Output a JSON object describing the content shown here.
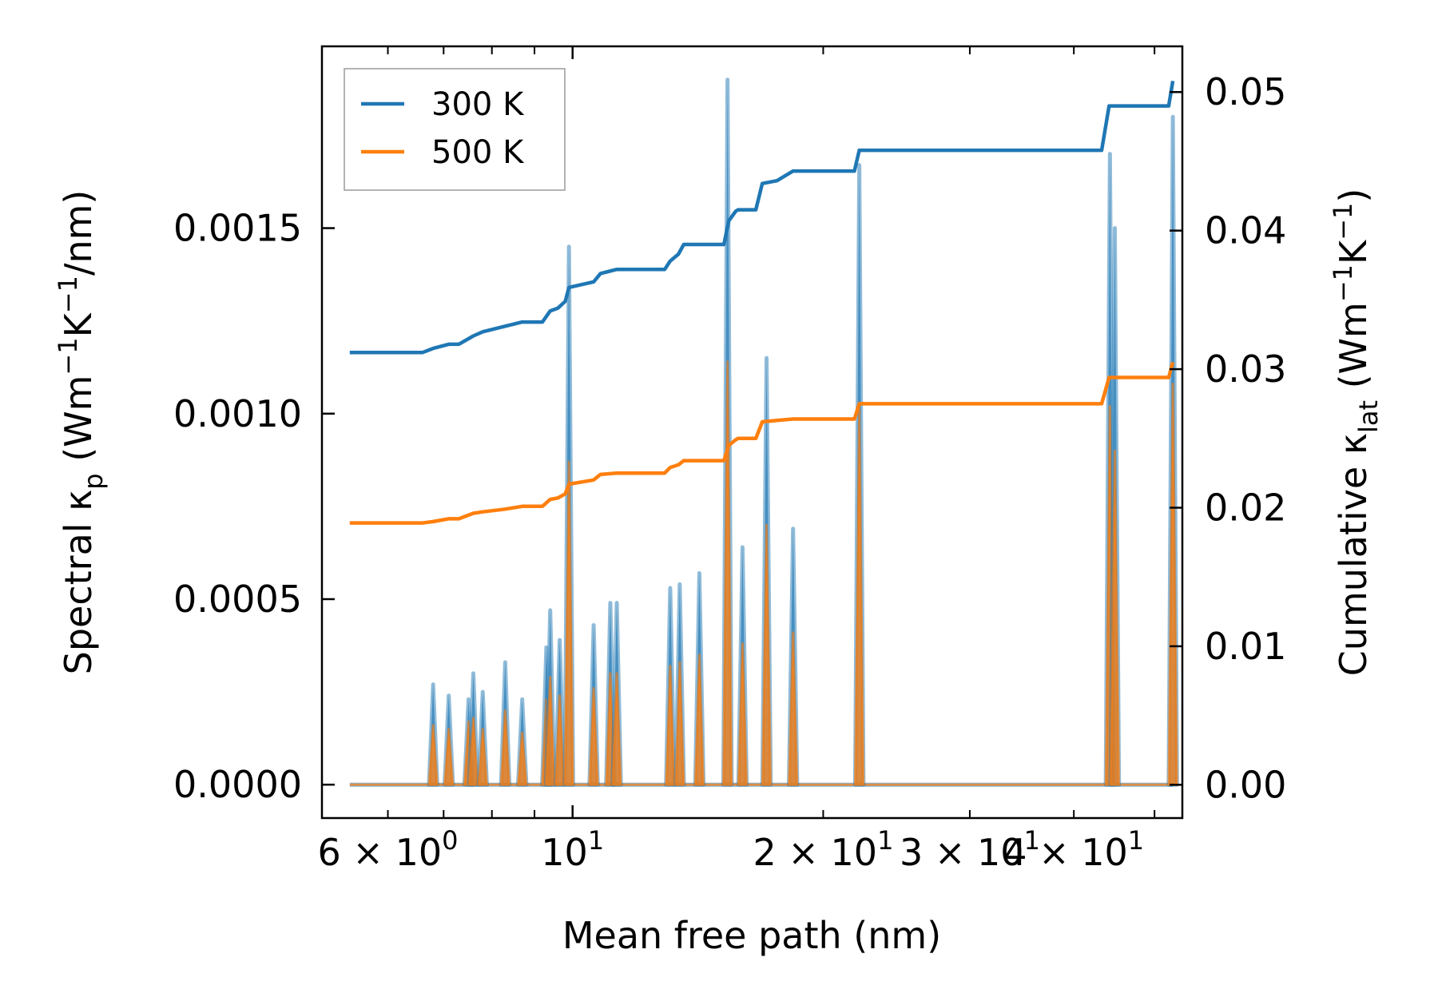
{
  "chart_data": {
    "type": "line",
    "title": "",
    "xlabel": "Mean free path (nm)",
    "ylabel_left": {
      "prefix": "Spectral κ",
      "sub": "p",
      "units_prefix": " (Wm",
      "sup1": "−1",
      "mid": "K",
      "sup2": "−1",
      "suffix": "/nm)"
    },
    "ylabel_right": {
      "prefix": "Cumulative κ",
      "sub": "lat",
      "units_prefix": " (Wm",
      "sup1": "−1",
      "mid": "K",
      "sup2": "−1",
      "suffix": ")"
    },
    "xscale": "log",
    "xlim": [
      5.0,
      54.0
    ],
    "ylim_left": [
      -9e-05,
      0.00199
    ],
    "ylim_right": [
      -0.0024,
      0.0533
    ],
    "x_ticks": [
      {
        "value": 6,
        "mant": "6",
        "times": " × ",
        "base": "10",
        "exp": "0"
      },
      {
        "value": 10,
        "mant": "",
        "times": "",
        "base": "10",
        "exp": "1"
      },
      {
        "value": 20,
        "mant": "2",
        "times": " × ",
        "base": "10",
        "exp": "1"
      },
      {
        "value": 30,
        "mant": "3",
        "times": " × ",
        "base": "10",
        "exp": "1"
      },
      {
        "value": 40,
        "mant": "4",
        "times": " × ",
        "base": "10",
        "exp": "1"
      }
    ],
    "y_left_ticks": [
      "0.0000",
      "0.0005",
      "0.0010",
      "0.0015"
    ],
    "y_left_tick_values": [
      0.0,
      0.0005,
      0.001,
      0.0015
    ],
    "y_right_ticks": [
      "0.00",
      "0.01",
      "0.02",
      "0.03",
      "0.04",
      "0.05"
    ],
    "y_right_tick_values": [
      0.0,
      0.01,
      0.02,
      0.03,
      0.04,
      0.05
    ],
    "legend": {
      "placement": "top-left",
      "entries": [
        "300 K",
        "500 K"
      ]
    },
    "colors": {
      "300 K": "#1f77b4",
      "500 K": "#ff7f0e"
    },
    "spectral_peaks": [
      {
        "x": 6.8,
        "k300": 0.00027,
        "k500": 0.00016
      },
      {
        "x": 7.1,
        "k300": 0.00024,
        "k500": 0.00015
      },
      {
        "x": 7.5,
        "k300": 0.00023,
        "k500": 0.00017
      },
      {
        "x": 7.6,
        "k300": 0.0003,
        "k500": 0.00018
      },
      {
        "x": 7.8,
        "k300": 0.00025,
        "k500": 0.00015
      },
      {
        "x": 8.3,
        "k300": 0.00033,
        "k500": 0.0002
      },
      {
        "x": 8.7,
        "k300": 0.00023,
        "k500": 0.00014
      },
      {
        "x": 9.3,
        "k300": 0.00037,
        "k500": 0.00023
      },
      {
        "x": 9.4,
        "k300": 0.00047,
        "k500": 0.00029
      },
      {
        "x": 9.65,
        "k300": 0.00039,
        "k500": 0.00024
      },
      {
        "x": 9.9,
        "k300": 0.00145,
        "k500": 0.00087
      },
      {
        "x": 10.6,
        "k300": 0.00043,
        "k500": 0.00026
      },
      {
        "x": 11.1,
        "k300": 0.00049,
        "k500": 0.0003
      },
      {
        "x": 11.3,
        "k300": 0.00049,
        "k500": 0.0003
      },
      {
        "x": 13.1,
        "k300": 0.00053,
        "k500": 0.00032
      },
      {
        "x": 13.45,
        "k300": 0.00054,
        "k500": 0.00033
      },
      {
        "x": 14.2,
        "k300": 0.00057,
        "k500": 0.00035
      },
      {
        "x": 15.35,
        "k300": 0.0019,
        "k500": 0.00114
      },
      {
        "x": 16.0,
        "k300": 0.00064,
        "k500": 0.00038
      },
      {
        "x": 17.1,
        "k300": 0.00115,
        "k500": 0.0007
      },
      {
        "x": 18.4,
        "k300": 0.00069,
        "k500": 0.00041
      },
      {
        "x": 22.1,
        "k300": 0.00167,
        "k500": 0.00101
      },
      {
        "x": 44.2,
        "k300": 0.0017,
        "k500": 0.00102
      },
      {
        "x": 44.8,
        "k300": 0.0015,
        "k500": 0.0009
      },
      {
        "x": 52.6,
        "k300": 0.0018,
        "k500": 0.00108
      }
    ],
    "series": [
      {
        "name": "300 K",
        "x": [
          5.4,
          6.6,
          6.8,
          7.1,
          7.3,
          7.6,
          7.8,
          8.3,
          8.7,
          9.2,
          9.4,
          9.6,
          9.8,
          9.9,
          10.6,
          10.8,
          11.3,
          12.9,
          13.1,
          13.4,
          13.6,
          14.2,
          15.2,
          15.4,
          15.7,
          15.8,
          16.6,
          16.9,
          17.6,
          18.4,
          21.8,
          22.1,
          43.2,
          44.1,
          44.8,
          52.0,
          52.6
        ],
        "values": [
          0.0312,
          0.0312,
          0.0315,
          0.0318,
          0.0318,
          0.0324,
          0.0327,
          0.0331,
          0.0334,
          0.0334,
          0.0342,
          0.0344,
          0.0349,
          0.0359,
          0.0363,
          0.0369,
          0.0372,
          0.0372,
          0.0378,
          0.0383,
          0.039,
          0.039,
          0.039,
          0.0407,
          0.0414,
          0.0415,
          0.0415,
          0.0434,
          0.0436,
          0.0443,
          0.0443,
          0.0458,
          0.0458,
          0.049,
          0.049,
          0.049,
          0.0508
        ]
      },
      {
        "name": "500 K",
        "x": [
          5.4,
          6.6,
          6.8,
          7.1,
          7.3,
          7.6,
          7.8,
          8.3,
          8.7,
          9.2,
          9.4,
          9.6,
          9.8,
          9.9,
          10.6,
          10.8,
          11.3,
          12.9,
          13.1,
          13.4,
          13.6,
          14.2,
          15.2,
          15.4,
          15.7,
          15.8,
          16.6,
          16.9,
          17.6,
          18.4,
          21.8,
          22.1,
          43.2,
          44.1,
          44.8,
          52.0,
          52.6
        ],
        "values": [
          0.0189,
          0.0189,
          0.019,
          0.0192,
          0.0192,
          0.0196,
          0.0197,
          0.0199,
          0.0201,
          0.0201,
          0.0206,
          0.0207,
          0.021,
          0.0217,
          0.022,
          0.0224,
          0.0225,
          0.0225,
          0.0229,
          0.0231,
          0.0234,
          0.0234,
          0.0234,
          0.0245,
          0.0249,
          0.025,
          0.025,
          0.0262,
          0.0263,
          0.0264,
          0.0264,
          0.0275,
          0.0275,
          0.0294,
          0.0294,
          0.0294,
          0.0305
        ]
      }
    ]
  }
}
